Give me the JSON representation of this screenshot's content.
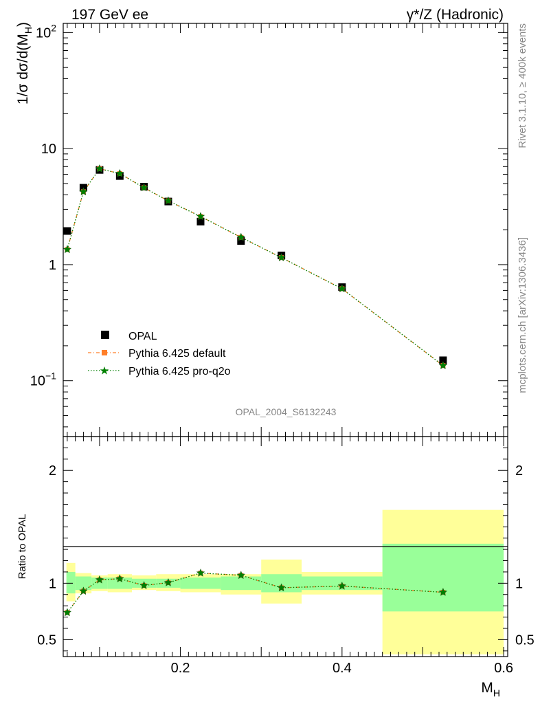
{
  "header": {
    "left_title": "197 GeV ee",
    "right_title": "γ*/Z (Hadronic)"
  },
  "side_text": {
    "top": "Rivet 3.1.10, ≥ 400k events",
    "bottom": "mcplots.cern.ch [arXiv:1306.3436]"
  },
  "watermark": "OPAL_2004_S6132243",
  "colors": {
    "data": "#000000",
    "pythia_default": "#ff7f2a",
    "pythia_proq2o": "#008000",
    "band_inner": "#99ff99",
    "band_outer": "#ffff99"
  },
  "chart_data": [
    {
      "type": "scatter",
      "panel": "main",
      "ylabel_main": "1/σ dσ/d(M",
      "ylabel_sub": "H",
      "ylabel_close": ")",
      "yscale": "log",
      "ylim": [
        0.033,
        120
      ],
      "xlim": [
        0.055,
        0.605
      ],
      "y_ticks": [
        {
          "v": 100,
          "base": "10",
          "exp": "2"
        },
        {
          "v": 10,
          "base": "10",
          "exp": ""
        },
        {
          "v": 1,
          "base": "1",
          "exp": ""
        },
        {
          "v": 0.1,
          "base": "10",
          "exp": "−1"
        }
      ],
      "legend_position": "lower-left",
      "series": [
        {
          "name": "OPAL",
          "marker": "square",
          "x": [
            0.06,
            0.08,
            0.1,
            0.125,
            0.155,
            0.185,
            0.225,
            0.275,
            0.325,
            0.4,
            0.525
          ],
          "y": [
            1.95,
            4.6,
            6.55,
            5.8,
            4.7,
            3.5,
            2.35,
            1.6,
            1.2,
            0.64,
            0.15
          ]
        },
        {
          "name": "Pythia 6.425 default",
          "marker": "square-small",
          "x": [
            0.06,
            0.08,
            0.1,
            0.125,
            0.155,
            0.185,
            0.225,
            0.275,
            0.325,
            0.4,
            0.525
          ],
          "y": [
            1.35,
            4.25,
            6.7,
            6.1,
            4.6,
            3.55,
            2.6,
            1.72,
            1.15,
            0.62,
            0.135
          ]
        },
        {
          "name": "Pythia 6.425 pro-q2o",
          "marker": "star",
          "x": [
            0.06,
            0.08,
            0.1,
            0.125,
            0.155,
            0.185,
            0.225,
            0.275,
            0.325,
            0.4,
            0.525
          ],
          "y": [
            1.35,
            4.25,
            6.7,
            6.1,
            4.6,
            3.55,
            2.6,
            1.72,
            1.15,
            0.62,
            0.135
          ]
        }
      ]
    },
    {
      "type": "line",
      "panel": "ratio",
      "ylabel": "Ratio to OPAL",
      "xlabel_main": "M",
      "xlabel_sub": "H",
      "ylim": [
        0.35,
        2.3
      ],
      "xlim": [
        0.055,
        0.605
      ],
      "x_ticks": [
        "0.2",
        "0.4",
        "0.6"
      ],
      "y_ticks": [
        "0.5",
        "1",
        "2"
      ],
      "bins": [
        {
          "lo": 0.05,
          "hi": 0.07,
          "inner": [
            0.91,
            1.1
          ],
          "outer": [
            0.84,
            1.18
          ]
        },
        {
          "lo": 0.07,
          "hi": 0.09,
          "inner": [
            0.94,
            1.06
          ],
          "outer": [
            0.91,
            1.09
          ]
        },
        {
          "lo": 0.09,
          "hi": 0.11,
          "inner": [
            0.95,
            1.05
          ],
          "outer": [
            0.93,
            1.07
          ]
        },
        {
          "lo": 0.11,
          "hi": 0.14,
          "inner": [
            0.95,
            1.05
          ],
          "outer": [
            0.92,
            1.08
          ]
        },
        {
          "lo": 0.14,
          "hi": 0.17,
          "inner": [
            0.96,
            1.04
          ],
          "outer": [
            0.94,
            1.07
          ]
        },
        {
          "lo": 0.17,
          "hi": 0.2,
          "inner": [
            0.96,
            1.04
          ],
          "outer": [
            0.93,
            1.08
          ]
        },
        {
          "lo": 0.2,
          "hi": 0.25,
          "inner": [
            0.95,
            1.05
          ],
          "outer": [
            0.92,
            1.08
          ]
        },
        {
          "lo": 0.25,
          "hi": 0.3,
          "inner": [
            0.94,
            1.06
          ],
          "outer": [
            0.9,
            1.08
          ]
        },
        {
          "lo": 0.3,
          "hi": 0.35,
          "inner": [
            0.92,
            1.08
          ],
          "outer": [
            0.82,
            1.21
          ]
        },
        {
          "lo": 0.35,
          "hi": 0.45,
          "inner": [
            0.94,
            1.06
          ],
          "outer": [
            0.9,
            1.1
          ]
        },
        {
          "lo": 0.45,
          "hi": 0.6,
          "inner": [
            0.75,
            1.35
          ],
          "outer": [
            0.37,
            1.65
          ]
        }
      ],
      "series": [
        {
          "name": "Pythia 6.425 default",
          "x": [
            0.06,
            0.08,
            0.1,
            0.125,
            0.155,
            0.185,
            0.225,
            0.275,
            0.325,
            0.4,
            0.525
          ],
          "y": [
            0.74,
            0.93,
            1.03,
            1.04,
            0.98,
            1.005,
            1.09,
            1.07,
            0.96,
            0.975,
            0.92
          ]
        },
        {
          "name": "Pythia 6.425 pro-q2o",
          "x": [
            0.06,
            0.08,
            0.1,
            0.125,
            0.155,
            0.185,
            0.225,
            0.275,
            0.325,
            0.4,
            0.525
          ],
          "y": [
            0.74,
            0.93,
            1.03,
            1.04,
            0.98,
            1.005,
            1.09,
            1.07,
            0.96,
            0.975,
            0.92
          ]
        }
      ]
    }
  ]
}
